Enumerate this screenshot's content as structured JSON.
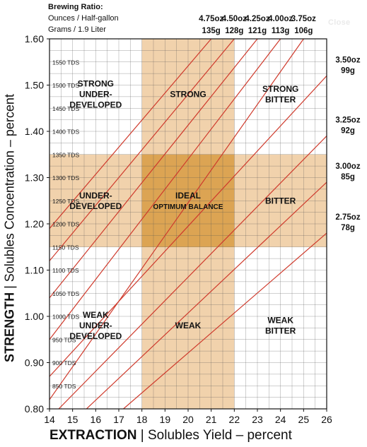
{
  "header": {
    "title": "Brewing Ratio:",
    "ounces_label": "Ounces / Half-gallon",
    "grams_label": "Grams / 1.9 Liter",
    "close_label": "Close"
  },
  "colors": {
    "band": "#f1d2ac",
    "ideal": "#dca453",
    "line": "#cf3a2c",
    "grid": "#555555"
  },
  "chart_data": {
    "type": "line",
    "title": "",
    "xlabel_bold": "EXTRACTION",
    "xlabel_rest": "Solubles Yield – percent",
    "ylabel_bold": "STRENGTH",
    "ylabel_rest": "Solubles Concentration – percent",
    "xlim": [
      14,
      26
    ],
    "ylim": [
      0.8,
      1.6
    ],
    "x_ticks": [
      "14",
      "15",
      "16",
      "17",
      "18",
      "19",
      "20",
      "21",
      "22",
      "23",
      "24",
      "25",
      "26"
    ],
    "y_ticks": [
      "0.80",
      "0.90",
      "1.00",
      "1.10",
      "1.20",
      "1.30",
      "1.40",
      "1.50",
      "1.60"
    ],
    "grid": true,
    "tds_labels": [
      {
        "y": 0.85,
        "label": "850 TDS"
      },
      {
        "y": 0.9,
        "label": "900 TDS"
      },
      {
        "y": 0.95,
        "label": "950 TDS"
      },
      {
        "y": 1.0,
        "label": "1000 TDS"
      },
      {
        "y": 1.05,
        "label": "1050 TDS"
      },
      {
        "y": 1.1,
        "label": "1100 TDS"
      },
      {
        "y": 1.15,
        "label": "1150 TDS"
      },
      {
        "y": 1.2,
        "label": "1200 TDS"
      },
      {
        "y": 1.25,
        "label": "1250 TDS"
      },
      {
        "y": 1.3,
        "label": "1300 TDS"
      },
      {
        "y": 1.35,
        "label": "1350 TDS"
      },
      {
        "y": 1.4,
        "label": "1400 TDS"
      },
      {
        "y": 1.45,
        "label": "1450 TDS"
      },
      {
        "y": 1.5,
        "label": "1500 TDS"
      },
      {
        "y": 1.55,
        "label": "1550 TDS"
      }
    ],
    "bands": {
      "vertical_x": [
        18,
        22
      ],
      "horizontal_y": [
        1.15,
        1.35
      ]
    },
    "regions": [
      {
        "lines": [
          "STRONG",
          "UNDER-",
          "DEVELOPED"
        ],
        "x": 16,
        "y": 1.48
      },
      {
        "lines": [
          "STRONG"
        ],
        "x": 20,
        "y": 1.48
      },
      {
        "lines": [
          "STRONG",
          "BITTER"
        ],
        "x": 24,
        "y": 1.48
      },
      {
        "lines": [
          "UNDER-",
          "DEVELOPED"
        ],
        "x": 16,
        "y": 1.25
      },
      {
        "lines": [
          "IDEAL",
          "OPTIMUM BALANCE"
        ],
        "x": 20,
        "y": 1.25
      },
      {
        "lines": [
          "BITTER"
        ],
        "x": 24,
        "y": 1.25
      },
      {
        "lines": [
          "WEAK",
          "UNDER-",
          "DEVELOPED"
        ],
        "x": 16,
        "y": 0.98
      },
      {
        "lines": [
          "WEAK"
        ],
        "x": 20,
        "y": 0.98
      },
      {
        "lines": [
          "WEAK",
          "BITTER"
        ],
        "x": 24,
        "y": 0.98
      }
    ],
    "series": [
      {
        "name": "2.75oz 78g",
        "oz": "2.75oz",
        "g": "78g",
        "label_side": "right",
        "points": [
          [
            17.2,
            0.8
          ],
          [
            26,
            1.18
          ]
        ]
      },
      {
        "name": "3.00oz 85g",
        "oz": "3.00oz",
        "g": "85g",
        "label_side": "right",
        "points": [
          [
            15.6,
            0.8
          ],
          [
            26,
            1.29
          ]
        ]
      },
      {
        "name": "3.25oz 92g",
        "oz": "3.25oz",
        "g": "92g",
        "label_side": "right",
        "points": [
          [
            14.4,
            0.8
          ],
          [
            26,
            1.39
          ]
        ]
      },
      {
        "name": "3.50oz 99g",
        "oz": "3.50oz",
        "g": "99g",
        "label_side": "right",
        "points": [
          [
            14,
            0.87
          ],
          [
            26,
            1.52
          ]
        ]
      },
      {
        "name": "3.75oz 106g",
        "oz": "3.75oz",
        "g": "106g",
        "label_side": "top",
        "points": [
          [
            14,
            0.82
          ],
          [
            25,
            1.6
          ]
        ]
      },
      {
        "name": "4.00oz 113g",
        "oz": "4.00oz",
        "g": "113g",
        "label_side": "top",
        "points": [
          [
            14,
            0.95
          ],
          [
            24,
            1.6
          ]
        ]
      },
      {
        "name": "4.25oz 121g",
        "oz": "4.25oz",
        "g": "121g",
        "label_side": "top",
        "points": [
          [
            14,
            1.04
          ],
          [
            23,
            1.6
          ]
        ]
      },
      {
        "name": "4.50oz 128g",
        "oz": "4.50oz",
        "g": "128g",
        "label_side": "top",
        "points": [
          [
            14,
            1.12
          ],
          [
            22,
            1.6
          ]
        ]
      },
      {
        "name": "4.75oz 135g",
        "oz": "4.75oz",
        "g": "135g",
        "label_side": "top",
        "points": [
          [
            14,
            1.19
          ],
          [
            21,
            1.6
          ]
        ]
      }
    ]
  }
}
